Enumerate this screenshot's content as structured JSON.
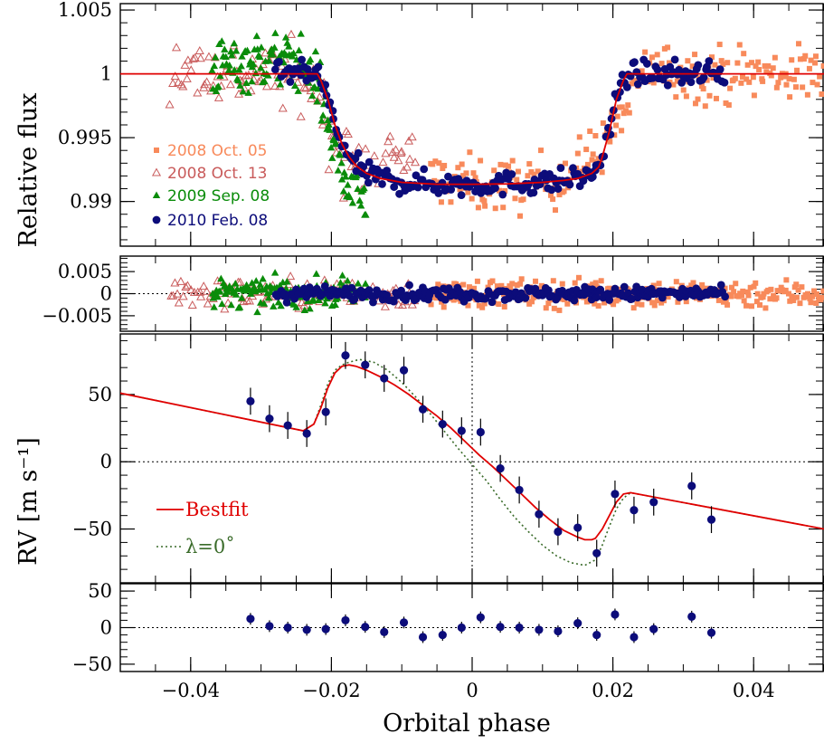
{
  "chart_data": [
    {
      "type": "scatter",
      "panel": "transit-lightcurve",
      "ylabel": "Relative flux",
      "ylim": [
        0.9865,
        1.0055
      ],
      "xlim": [
        -0.05,
        0.05
      ],
      "yticks": [
        0.99,
        0.995,
        1,
        1.005
      ],
      "ytick_labels": [
        "0.99",
        "0.995",
        "1",
        "1.005"
      ],
      "series": [
        {
          "name": "2008 Oct. 05",
          "color": "#F88A5B",
          "marker": "square",
          "x_range": [
            -0.006,
            0.05
          ],
          "approx_points": [
            [
              -0.004,
              0.9918
            ],
            [
              0.0,
              0.9913
            ],
            [
              0.005,
              0.9912
            ],
            [
              0.01,
              0.9915
            ],
            [
              0.015,
              0.9925
            ],
            [
              0.02,
              0.9955
            ],
            [
              0.025,
              1.0005
            ],
            [
              0.03,
              1.0
            ],
            [
              0.035,
              1.0
            ],
            [
              0.04,
              1.0
            ],
            [
              0.045,
              1.0
            ],
            [
              0.05,
              1.0
            ]
          ]
        },
        {
          "name": "2008 Oct. 13",
          "color": "#C95B5B",
          "marker": "open-triangle",
          "x_range": [
            -0.043,
            -0.008
          ],
          "approx_points": [
            [
              -0.042,
              1.0005
            ],
            [
              -0.035,
              1.0
            ],
            [
              -0.028,
              1.0
            ],
            [
              -0.022,
              0.999
            ],
            [
              -0.02,
              0.995
            ],
            [
              -0.017,
              0.9925
            ],
            [
              -0.013,
              0.9935
            ],
            [
              -0.009,
              0.9935
            ]
          ]
        },
        {
          "name": "2009 Sep. 08",
          "color": "#0A8C0A",
          "marker": "triangle",
          "x_range": [
            -0.037,
            -0.015
          ],
          "approx_points": [
            [
              -0.036,
              1.0005
            ],
            [
              -0.03,
              1.001
            ],
            [
              -0.025,
              1.001
            ],
            [
              -0.022,
              0.9995
            ],
            [
              -0.02,
              0.995
            ],
            [
              -0.018,
              0.9915
            ],
            [
              -0.016,
              0.9905
            ]
          ]
        },
        {
          "name": "2010 Feb. 08",
          "color": "#0C0C7A",
          "marker": "circle",
          "x_range": [
            -0.028,
            0.036
          ],
          "approx_points": [
            [
              -0.027,
              1.0
            ],
            [
              -0.023,
              1.0
            ],
            [
              -0.02,
              0.9955
            ],
            [
              -0.017,
              0.9925
            ],
            [
              -0.012,
              0.9915
            ],
            [
              -0.005,
              0.9914
            ],
            [
              0.0,
              0.9914
            ],
            [
              0.005,
              0.9915
            ],
            [
              0.01,
              0.9917
            ],
            [
              0.015,
              0.9922
            ],
            [
              0.019,
              0.9945
            ],
            [
              0.022,
              0.9995
            ],
            [
              0.026,
              1.0
            ],
            [
              0.03,
              1.0
            ],
            [
              0.035,
              1.0005
            ]
          ]
        }
      ],
      "model": {
        "name": "",
        "color": "#E00000",
        "x": [
          -0.05,
          -0.022,
          -0.0215,
          -0.0205,
          -0.0195,
          -0.0185,
          -0.0175,
          -0.0165,
          -0.015,
          -0.013,
          -0.01,
          -0.005,
          0.0,
          0.005,
          0.01,
          0.013,
          0.015,
          0.017,
          0.018,
          0.0185,
          0.0195,
          0.0205,
          0.0215,
          0.022,
          0.05
        ],
        "y": [
          1.0,
          1.0,
          0.9995,
          0.998,
          0.996,
          0.9945,
          0.9935,
          0.9928,
          0.9922,
          0.9918,
          0.9915,
          0.99135,
          0.99135,
          0.99138,
          0.9915,
          0.99165,
          0.9918,
          0.9922,
          0.9927,
          0.9935,
          0.9955,
          0.998,
          0.9995,
          1.0,
          1.0
        ]
      },
      "legend_position": "left-center"
    },
    {
      "type": "scatter",
      "panel": "flux-residuals",
      "ylim": [
        -0.0085,
        0.0085
      ],
      "xlim": [
        -0.05,
        0.05
      ],
      "yticks": [
        -0.005,
        0,
        0.005
      ],
      "ytick_labels": [
        "−0.005",
        "0",
        "0.005"
      ],
      "zero_line": "dotted"
    },
    {
      "type": "scatter",
      "panel": "radial-velocity",
      "ylabel": "RV [m s⁻¹]",
      "ylim": [
        -90,
        95
      ],
      "xlim": [
        -0.05,
        0.05
      ],
      "yticks": [
        -50,
        0,
        50
      ],
      "ytick_labels": [
        "−50",
        "0",
        "50"
      ],
      "points": [
        {
          "x": -0.0315,
          "y": 45,
          "err": 10
        },
        {
          "x": -0.0288,
          "y": 32,
          "err": 10
        },
        {
          "x": -0.0262,
          "y": 27,
          "err": 10
        },
        {
          "x": -0.0235,
          "y": 21,
          "err": 10
        },
        {
          "x": -0.0208,
          "y": 37,
          "err": 10
        },
        {
          "x": -0.018,
          "y": 79,
          "err": 10
        },
        {
          "x": -0.0152,
          "y": 72,
          "err": 10
        },
        {
          "x": -0.0125,
          "y": 62,
          "err": 10
        },
        {
          "x": -0.0097,
          "y": 68,
          "err": 10
        },
        {
          "x": -0.007,
          "y": 39,
          "err": 10
        },
        {
          "x": -0.0042,
          "y": 28,
          "err": 10
        },
        {
          "x": -0.0015,
          "y": 23,
          "err": 10
        },
        {
          "x": 0.0012,
          "y": 22,
          "err": 10
        },
        {
          "x": 0.004,
          "y": -5,
          "err": 10
        },
        {
          "x": 0.0067,
          "y": -21,
          "err": 10
        },
        {
          "x": 0.0095,
          "y": -39,
          "err": 10
        },
        {
          "x": 0.0122,
          "y": -52,
          "err": 10
        },
        {
          "x": 0.015,
          "y": -49,
          "err": 10
        },
        {
          "x": 0.0177,
          "y": -68,
          "err": 10
        },
        {
          "x": 0.0203,
          "y": -24,
          "err": 10
        },
        {
          "x": 0.023,
          "y": -36,
          "err": 10
        },
        {
          "x": 0.0258,
          "y": -30,
          "err": 10
        },
        {
          "x": 0.0312,
          "y": -18,
          "err": 10
        },
        {
          "x": 0.034,
          "y": -43,
          "err": 10
        }
      ],
      "point_color": "#0C0C7A",
      "series": [
        {
          "name": "Bestfit",
          "color": "#E00000",
          "style": "solid",
          "x": [
            -0.05,
            -0.024,
            -0.0225,
            -0.0215,
            -0.0205,
            -0.0195,
            -0.0185,
            -0.0175,
            -0.0165,
            -0.015,
            -0.013,
            -0.011,
            -0.009,
            -0.007,
            -0.005,
            -0.003,
            -0.001,
            0.001,
            0.003,
            0.005,
            0.007,
            0.009,
            0.011,
            0.013,
            0.015,
            0.016,
            0.017,
            0.0175,
            0.0185,
            0.0195,
            0.0205,
            0.0215,
            0.0225,
            0.05
          ],
          "y": [
            51,
            23,
            28,
            40,
            55,
            66,
            71,
            72,
            71,
            68,
            63,
            57,
            50,
            42,
            34,
            25,
            15,
            5,
            -4,
            -14,
            -24,
            -34,
            -43,
            -51,
            -56,
            -58,
            -58,
            -57,
            -50,
            -40,
            -30,
            -24,
            -23,
            -50
          ]
        },
        {
          "name": "λ=0˚",
          "color": "#3A6B2A",
          "style": "dotted",
          "x": [
            -0.05,
            -0.024,
            -0.0225,
            -0.0215,
            -0.0205,
            -0.0195,
            -0.0185,
            -0.0175,
            -0.016,
            -0.014,
            -0.012,
            -0.01,
            -0.008,
            -0.006,
            -0.004,
            -0.002,
            0.0,
            0.002,
            0.004,
            0.006,
            0.008,
            0.01,
            0.012,
            0.014,
            0.016,
            0.0175,
            0.0185,
            0.0195,
            0.0205,
            0.0215,
            0.0225,
            0.05
          ],
          "y": [
            51,
            23,
            28,
            42,
            58,
            68,
            72,
            74,
            76,
            74,
            68,
            59,
            48,
            36,
            23,
            10,
            -2,
            -14,
            -28,
            -41,
            -52,
            -62,
            -70,
            -75,
            -77,
            -73,
            -62,
            -48,
            -35,
            -27,
            -23,
            -50
          ]
        }
      ],
      "zero_line": "dotted",
      "vertical_line_x": 0,
      "legend_position": "left-bottom"
    },
    {
      "type": "scatter",
      "panel": "rv-residuals",
      "xlabel": "Orbital phase",
      "ylim": [
        -60,
        60
      ],
      "xlim": [
        -0.05,
        0.05
      ],
      "yticks": [
        -50,
        0,
        50
      ],
      "ytick_labels": [
        "−50",
        "0",
        "50"
      ],
      "xticks": [
        -0.04,
        -0.02,
        0,
        0.02,
        0.04
      ],
      "xtick_labels": [
        "−0.04",
        "−0.02",
        "0",
        "0.02",
        "0.04"
      ],
      "points": [
        {
          "x": -0.0315,
          "y": 12,
          "err": 8
        },
        {
          "x": -0.0288,
          "y": 2,
          "err": 8
        },
        {
          "x": -0.0262,
          "y": 0,
          "err": 8
        },
        {
          "x": -0.0235,
          "y": -3,
          "err": 8
        },
        {
          "x": -0.0208,
          "y": -2,
          "err": 8
        },
        {
          "x": -0.018,
          "y": 10,
          "err": 8
        },
        {
          "x": -0.0152,
          "y": 1,
          "err": 8
        },
        {
          "x": -0.0125,
          "y": -6,
          "err": 8
        },
        {
          "x": -0.0097,
          "y": 7,
          "err": 8
        },
        {
          "x": -0.007,
          "y": -13,
          "err": 8
        },
        {
          "x": -0.0042,
          "y": -10,
          "err": 8
        },
        {
          "x": -0.0015,
          "y": 0,
          "err": 8
        },
        {
          "x": 0.0012,
          "y": 14,
          "err": 8
        },
        {
          "x": 0.004,
          "y": 1,
          "err": 8
        },
        {
          "x": 0.0067,
          "y": 0,
          "err": 8
        },
        {
          "x": 0.0095,
          "y": -3,
          "err": 8
        },
        {
          "x": 0.0122,
          "y": -5,
          "err": 8
        },
        {
          "x": 0.015,
          "y": 6,
          "err": 8
        },
        {
          "x": 0.0177,
          "y": -10,
          "err": 8
        },
        {
          "x": 0.0203,
          "y": 18,
          "err": 8
        },
        {
          "x": 0.023,
          "y": -13,
          "err": 8
        },
        {
          "x": 0.0258,
          "y": -2,
          "err": 8
        },
        {
          "x": 0.0312,
          "y": 15,
          "err": 8
        },
        {
          "x": 0.034,
          "y": -7,
          "err": 8
        }
      ],
      "point_color": "#0C0C7A",
      "zero_line": "dotted"
    }
  ]
}
